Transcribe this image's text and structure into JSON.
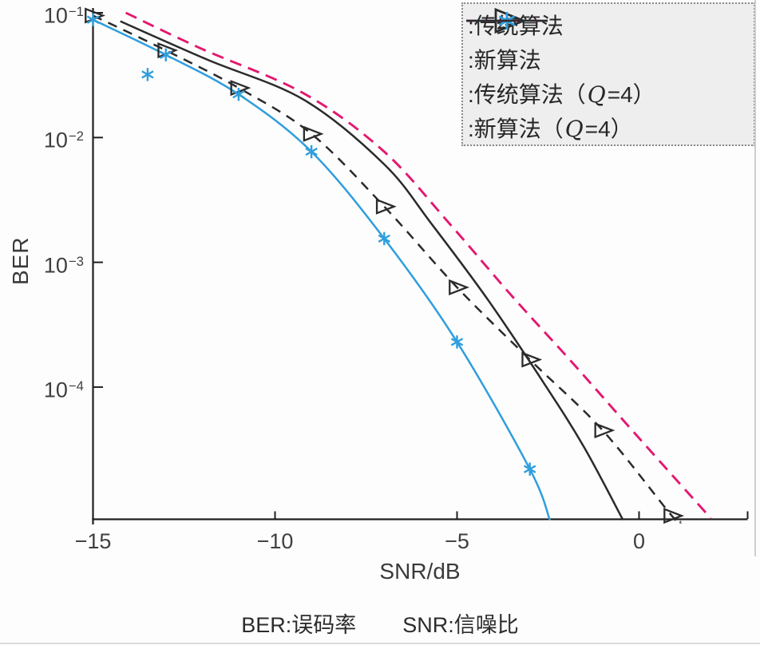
{
  "colors": {
    "axis": "#1f1f1f",
    "tick_text": "#3f3f3f",
    "dark_series": "#2b2b2b",
    "blue_series": "#2f9edd",
    "magenta_series": "#e3186f",
    "legend_bg": "#eeeeee",
    "legend_border": "#8a8a8a"
  },
  "chart_data": {
    "type": "line",
    "title": "",
    "xlabel": "SNR/dB",
    "ylabel": "BER",
    "grid": false,
    "legend_position": "top-right",
    "x_axis": {
      "min": -15,
      "max": 3,
      "ticks": [
        {
          "v": -15,
          "label": "−15"
        },
        {
          "v": -10,
          "label": "−10"
        },
        {
          "v": -5,
          "label": "−5"
        },
        {
          "v": 0,
          "label": "0"
        }
      ]
    },
    "y_axis": {
      "scale": "log",
      "top": 0.1,
      "bottom": 1e-05,
      "ticks": [
        {
          "exp": -1,
          "base": "10",
          "exp_label": "−1"
        },
        {
          "exp": -2,
          "base": "10",
          "exp_label": "−2"
        },
        {
          "exp": -3,
          "base": "10",
          "exp_label": "−3"
        },
        {
          "exp": -4,
          "base": "10",
          "exp_label": "−4"
        }
      ]
    },
    "series": [
      {
        "name": "传统算法",
        "label_parts": [
          {
            "t": ":传统算法"
          }
        ],
        "color": "#2b2b2b",
        "line": "dashed",
        "marker": "triangle-right",
        "points": [
          [
            -15,
            0.095
          ],
          [
            -13,
            0.05
          ],
          [
            -11,
            0.025
          ],
          [
            -9,
            0.0107
          ],
          [
            -7,
            0.0028
          ],
          [
            -5,
            0.00063
          ],
          [
            -3,
            0.000166
          ],
          [
            -1,
            4.5e-05
          ],
          [
            0.9,
            9.3e-06
          ]
        ],
        "line_extra_end": [
          [
            1.15,
            8.3e-06
          ]
        ]
      },
      {
        "name": "新算法",
        "label_parts": [
          {
            "t": ":新算法"
          }
        ],
        "color": "#2f9edd",
        "line": "solid",
        "marker": "asterisk",
        "points": [
          [
            -15,
            0.088
          ],
          [
            -13,
            0.046
          ],
          [
            -11,
            0.0222
          ],
          [
            -9,
            0.0077
          ],
          [
            -7,
            0.00155
          ],
          [
            -5,
            0.00023
          ],
          [
            -3,
            2.2e-05
          ]
        ],
        "outlier_markers": [
          [
            -13.5,
            0.032
          ]
        ],
        "line_extra_end": [
          [
            -2.45,
            8.6e-06
          ]
        ]
      },
      {
        "name": "传统算法（Q=4）",
        "label_parts": [
          {
            "t": ":传统算法（"
          },
          {
            "t": "Q",
            "math": true
          },
          {
            "t": "=4）"
          }
        ],
        "color": "#e3186f",
        "line": "dashed",
        "marker": null,
        "points": [
          [
            -14.1,
            0.1
          ],
          [
            -12.05,
            0.052
          ],
          [
            -9.2,
            0.0225
          ],
          [
            -7,
            0.0077
          ],
          [
            -5.2,
            0.00203
          ],
          [
            -3.5,
            0.00054
          ],
          [
            -1.9,
            0.000165
          ],
          [
            0,
            3.9e-05
          ],
          [
            1.97,
            8.9e-06
          ]
        ]
      },
      {
        "name": "新算法（Q=4）",
        "label_parts": [
          {
            "t": ":新算法（"
          },
          {
            "t": "Q",
            "math": true
          },
          {
            "t": "=4）"
          }
        ],
        "color": "#2b2b2b",
        "line": "solid",
        "marker": null,
        "points": [
          [
            -14.25,
            0.0855
          ],
          [
            -11.85,
            0.042
          ],
          [
            -9.2,
            0.02
          ],
          [
            -7,
            0.0061
          ],
          [
            -5.7,
            0.00203
          ],
          [
            -4.15,
            0.0005
          ],
          [
            -2.6,
            0.000106
          ],
          [
            -1.5,
            3.26e-05
          ],
          [
            -0.44,
            8.6e-06
          ]
        ]
      }
    ]
  },
  "caption": {
    "part1": "BER:误码率",
    "part2": "SNR:信噪比"
  }
}
